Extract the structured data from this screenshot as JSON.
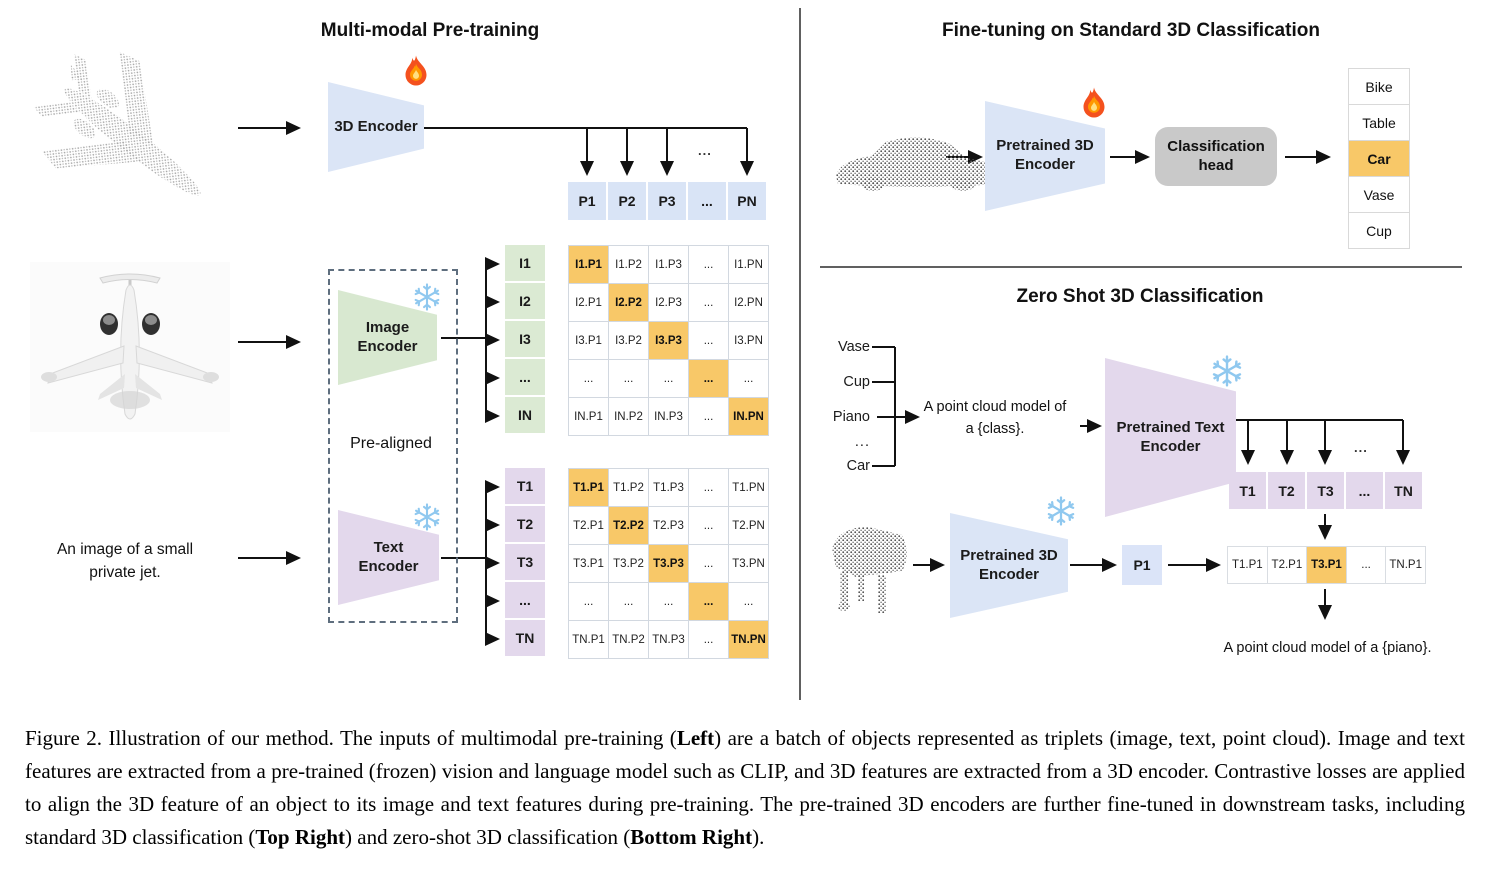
{
  "pretraining": {
    "title": "Multi-modal Pre-training",
    "encoder_3d_label": "3D Encoder",
    "image_encoder": {
      "line1": "Image",
      "line2": "Encoder"
    },
    "text_encoder": {
      "line1": "Text",
      "line2": "Encoder"
    },
    "prealigned_label": "Pre-aligned",
    "text_input": {
      "line1": "An image of a small",
      "line2": "private jet."
    },
    "p_row": [
      "P1",
      "P2",
      "P3",
      "...",
      "PN"
    ],
    "p_ellipsis": "...",
    "i_col": [
      "I1",
      "I2",
      "I3",
      "...",
      "IN"
    ],
    "t_col": [
      "T1",
      "T2",
      "T3",
      "...",
      "TN"
    ],
    "i_matrix": [
      [
        "I1.P1",
        "I1.P2",
        "I1.P3",
        "...",
        "I1.PN"
      ],
      [
        "I2.P1",
        "I2.P2",
        "I2.P3",
        "...",
        "I2.PN"
      ],
      [
        "I3.P1",
        "I3.P2",
        "I3.P3",
        "...",
        "I3.PN"
      ],
      [
        "...",
        "...",
        "...",
        "...",
        "..."
      ],
      [
        "IN.P1",
        "IN.P2",
        "IN.P3",
        "...",
        "IN.PN"
      ]
    ],
    "t_matrix": [
      [
        "T1.P1",
        "T1.P2",
        "T1.P3",
        "...",
        "T1.PN"
      ],
      [
        "T2.P1",
        "T2.P2",
        "T2.P3",
        "...",
        "T2.PN"
      ],
      [
        "T3.P1",
        "T3.P2",
        "T3.P3",
        "...",
        "T3.PN"
      ],
      [
        "...",
        "...",
        "...",
        "...",
        "..."
      ],
      [
        "TN.P1",
        "TN.P2",
        "TN.P3",
        "...",
        "TN.PN"
      ]
    ]
  },
  "finetune": {
    "title": "Fine-tuning on Standard 3D Classification",
    "encoder": {
      "line1": "Pretrained 3D",
      "line2": "Encoder"
    },
    "head": {
      "line1": "Classification",
      "line2": "head"
    },
    "classes": [
      {
        "label": "Bike",
        "highlight": false
      },
      {
        "label": "Table",
        "highlight": false
      },
      {
        "label": "Car",
        "highlight": true
      },
      {
        "label": "Vase",
        "highlight": false
      },
      {
        "label": "Cup",
        "highlight": false
      }
    ]
  },
  "zeroshot": {
    "title": "Zero Shot 3D Classification",
    "class_list": [
      "Vase",
      "Cup",
      "Piano",
      "...",
      "Car"
    ],
    "prompt": {
      "line1": "A point cloud model of",
      "line2": "a {class}."
    },
    "text_encoder": {
      "line1": "Pretrained Text",
      "line2": "Encoder"
    },
    "encoder_3d": {
      "line1": "Pretrained 3D",
      "line2": "Encoder"
    },
    "p1_label": "P1",
    "t_row": [
      "T1",
      "T2",
      "T3",
      "...",
      "TN"
    ],
    "t_ellipsis": "...",
    "sim_row": [
      {
        "label": "T1.P1",
        "highlight": false
      },
      {
        "label": "T2.P1",
        "highlight": false
      },
      {
        "label": "T3.P1",
        "highlight": true
      },
      {
        "label": "...",
        "highlight": false
      },
      {
        "label": "TN.P1",
        "highlight": false
      }
    ],
    "result_prompt": "A point cloud model of a {piano}."
  },
  "icons": {
    "flame": "flame-icon (trainable)",
    "snowflake": "snowflake-icon (frozen)"
  },
  "colors": {
    "highlight_orange": "#f8c868",
    "cell_blue": "#d9e4f6",
    "cell_green": "#dbead3",
    "cell_purple": "#e3d8ec",
    "head_gray": "#c9c9c9"
  },
  "caption": {
    "segments": [
      {
        "text": "Figure 2. Illustration of our method. The inputs of multimodal pre-training ("
      },
      {
        "text": "Left",
        "bold": true
      },
      {
        "text": ") are a batch of objects represented as triplets (image, text, point cloud). Image and text features are extracted from a pre-trained (frozen) vision and language model such as CLIP, and 3D features are extracted from a 3D encoder. Contrastive losses are applied to align the 3D feature of an object to its image and text features during pre-training. The pre-trained 3D encoders are further fine-tuned in downstream tasks, including standard 3D classification ("
      },
      {
        "text": "Top Right",
        "bold": true
      },
      {
        "text": ") and zero-shot 3D classification ("
      },
      {
        "text": "Bottom Right",
        "bold": true
      },
      {
        "text": ")."
      }
    ]
  }
}
